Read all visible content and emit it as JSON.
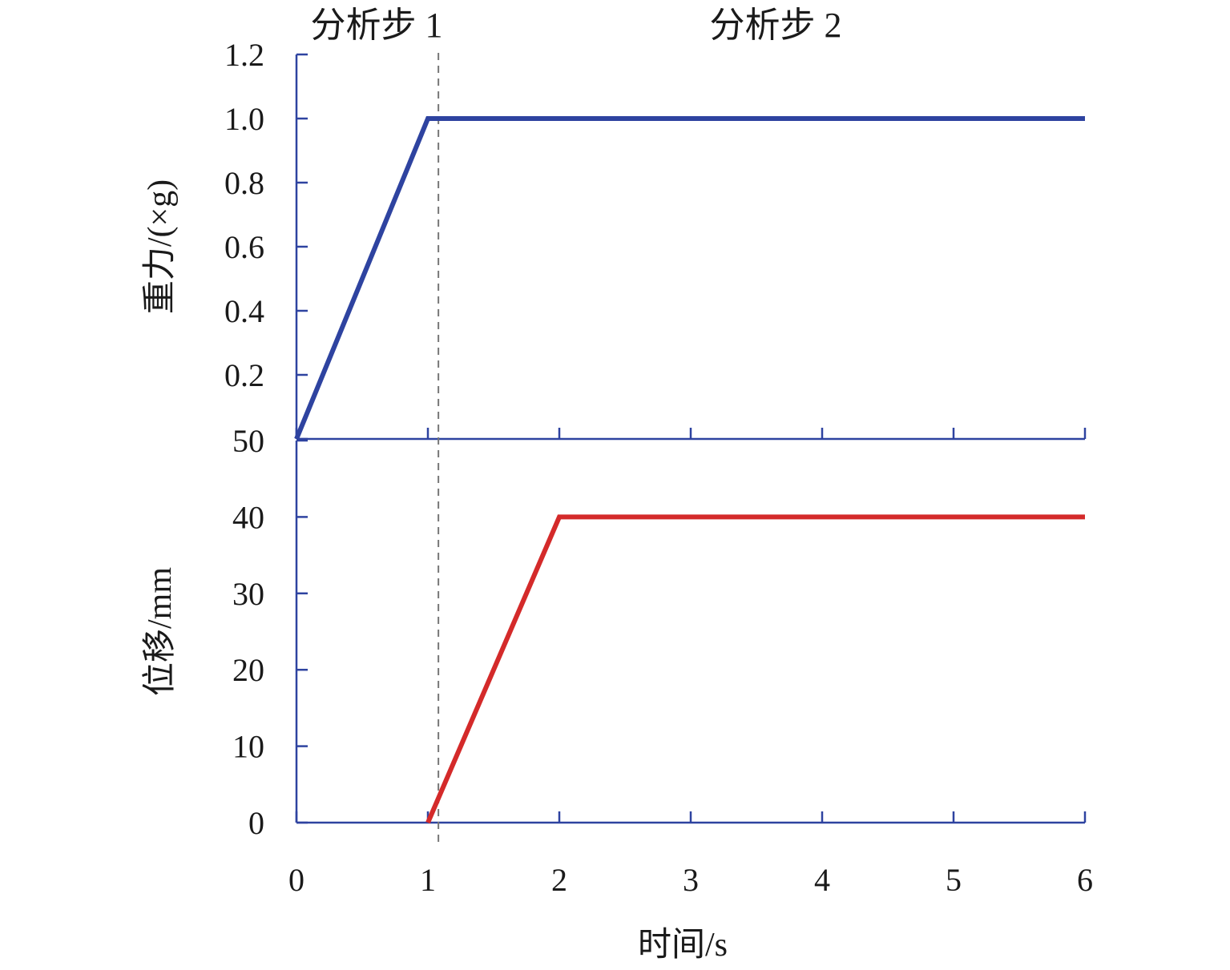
{
  "step_labels": [
    "分析步 1",
    "分析步 2"
  ],
  "step_divider_x": 1.08,
  "chart_data": [
    {
      "type": "line",
      "ylabel": "重力/(×g)",
      "xlim": [
        0,
        6
      ],
      "ylim": [
        0,
        1.2
      ],
      "x_ticks": [
        0,
        1,
        2,
        3,
        4,
        5,
        6
      ],
      "y_ticks": [
        0,
        0.2,
        0.4,
        0.6,
        0.8,
        1.0,
        1.2
      ],
      "y_tick_labels": [
        "",
        "0.2",
        "0.4",
        "0.6",
        "0.8",
        "1.0",
        "1.2"
      ],
      "series": [
        {
          "color": "#2e43a0",
          "x": [
            0,
            1,
            6
          ],
          "y": [
            0,
            1.0,
            1.0
          ]
        }
      ]
    },
    {
      "type": "line",
      "xlabel": "时间/s",
      "ylabel": "位移/mm",
      "xlim": [
        0,
        6
      ],
      "ylim": [
        0,
        50
      ],
      "x_ticks": [
        0,
        1,
        2,
        3,
        4,
        5,
        6
      ],
      "x_tick_labels": [
        "0",
        "1",
        "2",
        "3",
        "4",
        "5",
        "6"
      ],
      "y_ticks": [
        0,
        10,
        20,
        30,
        40,
        50
      ],
      "y_tick_labels": [
        "0",
        "10",
        "20",
        "30",
        "40",
        "50"
      ],
      "series": [
        {
          "color": "#d42a2a",
          "x": [
            1,
            2,
            6
          ],
          "y": [
            0,
            40,
            40
          ]
        }
      ]
    }
  ],
  "colors": {
    "axis": "#2e43a0",
    "divider": "#777777"
  }
}
